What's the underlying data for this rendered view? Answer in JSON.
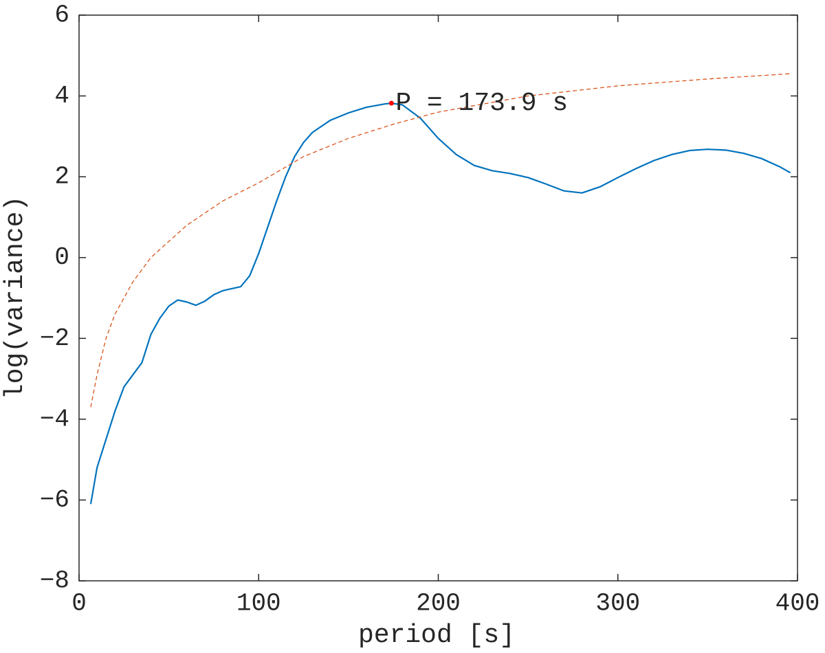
{
  "chart_data": {
    "type": "line",
    "xlabel": "period [s]",
    "ylabel": "log(variance)",
    "xlim": [
      0,
      400
    ],
    "ylim": [
      -8,
      6
    ],
    "xticks": [
      0,
      100,
      200,
      300,
      400
    ],
    "yticks": [
      {
        "value": -8,
        "label": "−8"
      },
      {
        "value": -6,
        "label": "−6"
      },
      {
        "value": -4,
        "label": "−4"
      },
      {
        "value": -2,
        "label": "−2"
      },
      0,
      2,
      4,
      6
    ],
    "series": [
      {
        "color": "#0072bd",
        "dash": false,
        "x": [
          6.5,
          10,
          15,
          20,
          25,
          30,
          35,
          40,
          45,
          50,
          55,
          60,
          65,
          70,
          75,
          80,
          85,
          90,
          95,
          100,
          105,
          110,
          115,
          120,
          125,
          130,
          140,
          150,
          160,
          170,
          173.9,
          180,
          190,
          200,
          210,
          220,
          230,
          240,
          250,
          260,
          270,
          280,
          290,
          300,
          310,
          320,
          330,
          340,
          350,
          360,
          370,
          380,
          390,
          396
        ],
        "values": [
          -6.1,
          -5.2,
          -4.5,
          -3.8,
          -3.2,
          -2.9,
          -2.6,
          -1.9,
          -1.5,
          -1.2,
          -1.05,
          -1.1,
          -1.18,
          -1.08,
          -0.92,
          -0.82,
          -0.77,
          -0.72,
          -0.45,
          0.1,
          0.75,
          1.4,
          2.0,
          2.5,
          2.85,
          3.1,
          3.4,
          3.58,
          3.72,
          3.8,
          3.82,
          3.78,
          3.45,
          2.95,
          2.55,
          2.28,
          2.15,
          2.08,
          1.98,
          1.82,
          1.65,
          1.6,
          1.75,
          1.98,
          2.2,
          2.4,
          2.55,
          2.65,
          2.68,
          2.66,
          2.58,
          2.45,
          2.25,
          2.1
        ]
      },
      {
        "color": "#d95319",
        "dash": true,
        "x": [
          6.5,
          10,
          15,
          20,
          30,
          40,
          50,
          60,
          80,
          100,
          125,
          150,
          175,
          200,
          250,
          300,
          350,
          396
        ],
        "values": [
          -3.7,
          -2.9,
          -2.0,
          -1.4,
          -0.6,
          0.0,
          0.4,
          0.8,
          1.4,
          1.85,
          2.5,
          2.95,
          3.3,
          3.6,
          4.0,
          4.25,
          4.42,
          4.55
        ]
      }
    ],
    "annotations": [
      {
        "text": "P = 173.9 s",
        "x": 173.9,
        "y": 3.82,
        "color": "#ff0000"
      }
    ]
  }
}
